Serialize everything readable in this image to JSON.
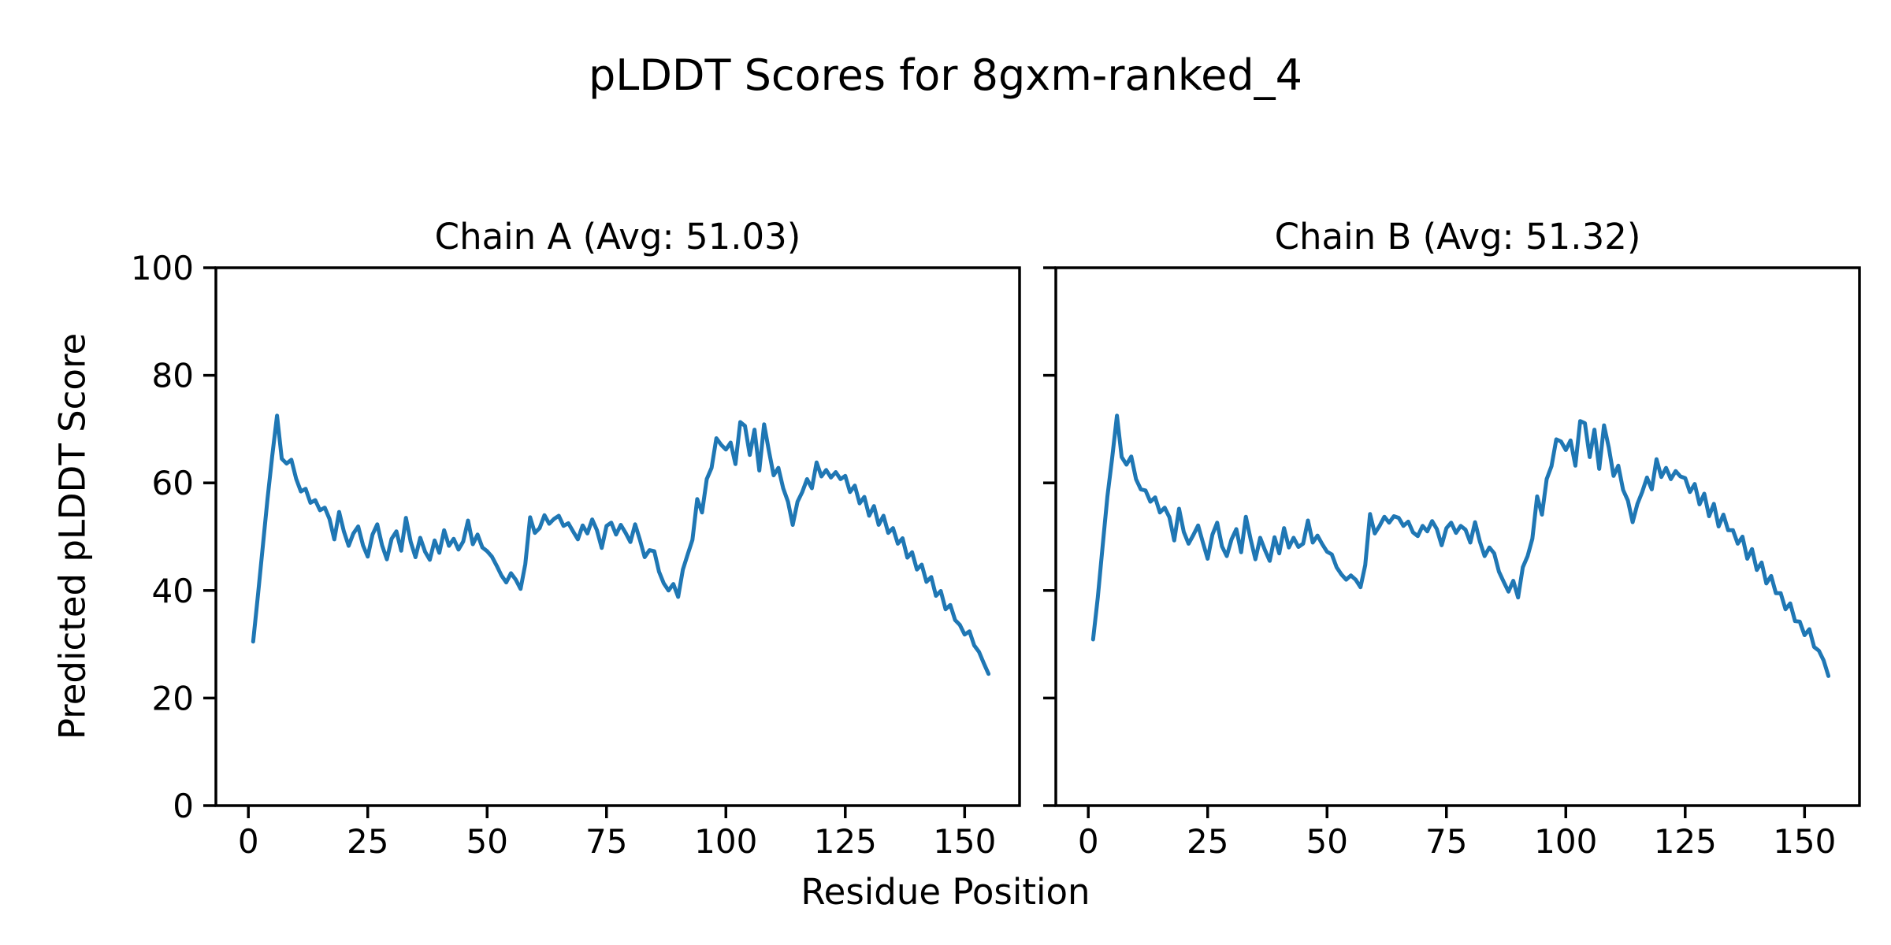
{
  "figure": {
    "title": "pLDDT Scores for 8gxm-ranked_4",
    "xlabel": "Residue Position",
    "ylabel": "Predicted pLDDT Score",
    "background_color": "#ffffff",
    "text_color": "#000000",
    "line_color": "#1f77b4",
    "spine_color": "#000000"
  },
  "chart_data": [
    {
      "type": "line",
      "chain": "A",
      "title": "Chain A (Avg: 51.03)",
      "avg_plddt": 51.03,
      "xlabel": "Residue Position",
      "ylabel": "Predicted pLDDT Score",
      "xlim": [
        -6.8,
        161.5
      ],
      "ylim": [
        0,
        100
      ],
      "x_ticks": [
        0,
        25,
        50,
        75,
        100,
        125,
        150
      ],
      "y_ticks": [
        0,
        20,
        40,
        60,
        80,
        100
      ],
      "y_tick_labels_visible": true,
      "grid": false,
      "legend": "none",
      "x_start": 1,
      "values": [
        30.5,
        39,
        48,
        57,
        65,
        72.5,
        64.5,
        63.6,
        64.3,
        60.8,
        58.4,
        58.9,
        56.3,
        56.8,
        54.9,
        55.4,
        53.3,
        49.5,
        54.6,
        51,
        48.3,
        50.6,
        51.9,
        48.4,
        46.3,
        50.4,
        52.3,
        48.4,
        45.8,
        49.6,
        51,
        47.4,
        53.5,
        49,
        46.2,
        49.8,
        47.2,
        45.7,
        49.3,
        47,
        51.2,
        48.3,
        49.6,
        47.6,
        49.1,
        53,
        48.6,
        50.4,
        48,
        47.3,
        46.3,
        44.6,
        42.8,
        41.5,
        43.2,
        42,
        40.3,
        44.9,
        53.6,
        50.7,
        51.6,
        54,
        52.4,
        53.3,
        53.9,
        52,
        52.5,
        51,
        49.5,
        52.1,
        50.6,
        53.2,
        51.2,
        47.9,
        52,
        52.6,
        50.4,
        52.2,
        50.7,
        49,
        52.3,
        49.4,
        46.2,
        47.5,
        47.3,
        43.5,
        41.3,
        40,
        41.2,
        38.8,
        43.9,
        46.7,
        49.4,
        57,
        54.5,
        60.7,
        62.8,
        68.3,
        67.1,
        66.2,
        67.5,
        63.5,
        71.3,
        70.6,
        65.2,
        69.9,
        62.3,
        70.9,
        66,
        61.4,
        62.8,
        59,
        56.5,
        52.2,
        56.5,
        58.3,
        60.7,
        59,
        63.8,
        61.2,
        62.4,
        61,
        62,
        60.7,
        61.3,
        58.3,
        59.5,
        56.2,
        57.4,
        53.9,
        55.7,
        52.2,
        53.9,
        50.7,
        51.6,
        48.7,
        49.7,
        46.1,
        47.1,
        43.9,
        44.8,
        41.6,
        42.5,
        39,
        39.9,
        36.5,
        37.3,
        34.5,
        33.6,
        31.8,
        32.4,
        29.8,
        28.6,
        26.5,
        24.5
      ]
    },
    {
      "type": "line",
      "chain": "B",
      "title": "Chain B (Avg: 51.32)",
      "avg_plddt": 51.32,
      "xlabel": "Residue Position",
      "ylabel": "Predicted pLDDT Score",
      "xlim": [
        -6.8,
        161.5
      ],
      "ylim": [
        0,
        100
      ],
      "x_ticks": [
        0,
        25,
        50,
        75,
        100,
        125,
        150
      ],
      "y_ticks": [
        0,
        20,
        40,
        60,
        80,
        100
      ],
      "y_tick_labels_visible": false,
      "grid": false,
      "legend": "none",
      "x_start": 1,
      "values": [
        30.9,
        38.7,
        48.2,
        57.5,
        64.6,
        72.5,
        64.8,
        63.4,
        64.9,
        60.7,
        58.8,
        58.6,
        56.5,
        57.3,
        54.5,
        55.4,
        53.6,
        49.3,
        55.2,
        50.9,
        48.7,
        50.3,
        52.1,
        48.9,
        45.9,
        50.4,
        52.6,
        48.2,
        46.4,
        49.5,
        51.4,
        47.1,
        53.7,
        49.5,
        45.8,
        49.8,
        47.5,
        45.5,
        49.9,
        46.9,
        51.6,
        48,
        49.8,
        48.1,
        48.7,
        53,
        48.9,
        50.2,
        48.6,
        47.2,
        46.7,
        44.3,
        43,
        42,
        42.8,
        42,
        40.6,
        44.7,
        54.2,
        50.6,
        52,
        53.7,
        52.6,
        53.8,
        53.5,
        52,
        52.8,
        50.8,
        50.1,
        52,
        51,
        52.9,
        51.4,
        48.4,
        51.6,
        52.6,
        50.7,
        52,
        51.3,
        48.9,
        52.7,
        49.1,
        46.4,
        48,
        46.9,
        43.5,
        41.6,
        39.8,
        41.8,
        38.7,
        44.3,
        46.4,
        49.6,
        57.5,
        54.1,
        60.7,
        63.1,
        68.1,
        67.7,
        66.1,
        67.9,
        63.2,
        71.5,
        71.1,
        64.8,
        69.9,
        62.6,
        70.7,
        66.6,
        61.3,
        63.2,
        58.7,
        56.7,
        52.7,
        56.1,
        58.3,
        61,
        58.8,
        64.4,
        61.1,
        62.8,
        60.7,
        62.2,
        61.2,
        60.9,
        58.3,
        59.8,
        56,
        58,
        53.8,
        56.1,
        51.9,
        54.1,
        51.2,
        51.2,
        48.7,
        50,
        45.9,
        47.7,
        43.8,
        45.2,
        41.3,
        42.7,
        39.5,
        39.5,
        36.5,
        37.6,
        34.3,
        34.2,
        31.7,
        32.8,
        29.5,
        28.8,
        27,
        24.1
      ]
    }
  ]
}
